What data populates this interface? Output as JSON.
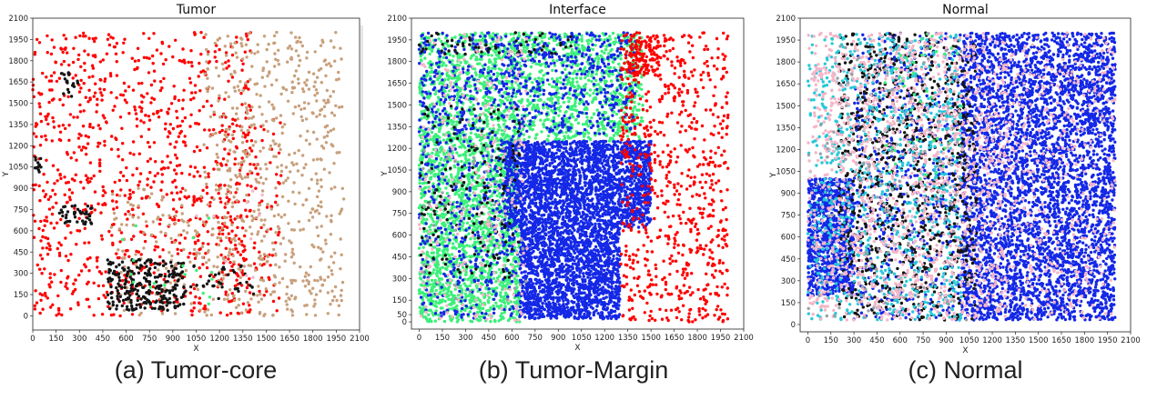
{
  "figure": {
    "captions": [
      "(a) Tumor-core",
      "(b) Tumor-Margin",
      "(c) Normal"
    ]
  },
  "palette": {
    "tumor_red": "#ee1c1c",
    "tan": "#c8a07c",
    "black": "#141414",
    "green": "#3cf07a",
    "blue": "#1428e6",
    "pink": "#f4b6c8",
    "cyan": "#28c8d8",
    "gray": "#9aa0a8"
  },
  "chart_data": [
    {
      "type": "scatter",
      "title": "Tumor",
      "xlabel": "X",
      "ylabel": "Y",
      "xlim": [
        0,
        2100
      ],
      "ylim": [
        -100,
        2100
      ],
      "xticks": [
        0,
        150,
        300,
        450,
        600,
        750,
        900,
        1050,
        1200,
        1350,
        1500,
        1650,
        1800,
        1950,
        2100
      ],
      "yticks": [
        0,
        150,
        300,
        450,
        600,
        750,
        900,
        1050,
        1200,
        1350,
        1500,
        1650,
        1800,
        1950,
        2100
      ],
      "grid": false,
      "regions": [
        {
          "color": "red",
          "x": [
            0,
            1400
          ],
          "y": [
            0,
            2000
          ],
          "density": 1000
        },
        {
          "color": "red",
          "x": [
            1200,
            1600
          ],
          "y": [
            0,
            1400
          ],
          "density": 120
        },
        {
          "color": "tan",
          "x": [
            1100,
            2000
          ],
          "y": [
            0,
            2000
          ],
          "density": 650
        },
        {
          "color": "tan",
          "x": [
            500,
            1100
          ],
          "y": [
            0,
            900
          ],
          "density": 120
        },
        {
          "color": "black",
          "x": [
            480,
            980
          ],
          "y": [
            40,
            400
          ],
          "density": 260
        },
        {
          "color": "black",
          "x": [
            170,
            380
          ],
          "y": [
            640,
            780
          ],
          "density": 40
        },
        {
          "color": "black",
          "x": [
            180,
            300
          ],
          "y": [
            1540,
            1720
          ],
          "density": 18
        },
        {
          "color": "black",
          "x": [
            10,
            60
          ],
          "y": [
            1000,
            1120
          ],
          "density": 12
        },
        {
          "color": "black",
          "x": [
            900,
            1450
          ],
          "y": [
            120,
            380
          ],
          "density": 40
        },
        {
          "color": "green",
          "x": [
            550,
            1200
          ],
          "y": [
            40,
            700
          ],
          "density": 18
        },
        {
          "color": "pink",
          "x": [
            1000,
            1500
          ],
          "y": [
            200,
            900
          ],
          "density": 10
        }
      ]
    },
    {
      "type": "scatter",
      "title": "Interface",
      "xlabel": "X",
      "ylabel": "Y",
      "xlim": [
        -50,
        2100
      ],
      "ylim": [
        -50,
        2100
      ],
      "xticks": [
        0,
        150,
        300,
        450,
        600,
        750,
        900,
        1050,
        1200,
        1350,
        1500,
        1650,
        1800,
        1950,
        2100
      ],
      "yticks": [
        0,
        50,
        150,
        300,
        450,
        600,
        750,
        900,
        1050,
        1200,
        1350,
        1500,
        1650,
        1800,
        1950,
        2100
      ],
      "grid": false,
      "regions": [
        {
          "color": "green",
          "x": [
            0,
            1450
          ],
          "y": [
            1250,
            2000
          ],
          "density": 1700
        },
        {
          "color": "green",
          "x": [
            0,
            650
          ],
          "y": [
            0,
            1300
          ],
          "density": 1800
        },
        {
          "color": "blue",
          "x": [
            0,
            1400
          ],
          "y": [
            1300,
            2000
          ],
          "density": 700
        },
        {
          "color": "blue",
          "x": [
            550,
            1500
          ],
          "y": [
            650,
            1250
          ],
          "density": 2400
        },
        {
          "color": "blue",
          "x": [
            650,
            1300
          ],
          "y": [
            20,
            650
          ],
          "density": 1700
        },
        {
          "color": "blue",
          "x": [
            0,
            650
          ],
          "y": [
            20,
            1300
          ],
          "density": 400
        },
        {
          "color": "red",
          "x": [
            1300,
            2000
          ],
          "y": [
            0,
            2000
          ],
          "density": 750
        },
        {
          "color": "red",
          "x": [
            1350,
            1550
          ],
          "y": [
            1700,
            2000
          ],
          "density": 120
        },
        {
          "color": "black",
          "x": [
            0,
            650
          ],
          "y": [
            300,
            1500
          ],
          "density": 160
        },
        {
          "color": "black",
          "x": [
            0,
            1000
          ],
          "y": [
            1850,
            2000
          ],
          "density": 60
        },
        {
          "color": "pink",
          "x": [
            0,
            700
          ],
          "y": [
            0,
            2000
          ],
          "density": 260
        },
        {
          "color": "gray",
          "x": [
            0,
            700
          ],
          "y": [
            100,
            1200
          ],
          "density": 40
        }
      ]
    },
    {
      "type": "scatter",
      "title": "Normal",
      "xlabel": "X",
      "ylabel": "Y",
      "xlim": [
        -50,
        2100
      ],
      "ylim": [
        -50,
        2100
      ],
      "xticks": [
        0,
        150,
        300,
        450,
        600,
        750,
        900,
        1050,
        1200,
        1350,
        1500,
        1650,
        1800,
        1950,
        2100
      ],
      "yticks": [
        0,
        150,
        300,
        450,
        600,
        750,
        900,
        1050,
        1200,
        1350,
        1500,
        1650,
        1800,
        1950,
        2100
      ],
      "grid": false,
      "regions": [
        {
          "color": "blue",
          "x": [
            1000,
            2000
          ],
          "y": [
            30,
            2000
          ],
          "density": 4500
        },
        {
          "color": "blue",
          "x": [
            0,
            300
          ],
          "y": [
            200,
            1000
          ],
          "density": 900
        },
        {
          "color": "blue",
          "x": [
            300,
            1000
          ],
          "y": [
            30,
            2000
          ],
          "density": 600
        },
        {
          "color": "black",
          "x": [
            200,
            1100
          ],
          "y": [
            30,
            2000
          ],
          "density": 1000
        },
        {
          "color": "cyan",
          "x": [
            0,
            1000
          ],
          "y": [
            30,
            2000
          ],
          "density": 900
        },
        {
          "color": "pink",
          "x": [
            0,
            1300
          ],
          "y": [
            30,
            2000
          ],
          "density": 1400
        },
        {
          "color": "pink",
          "x": [
            1300,
            2000
          ],
          "y": [
            30,
            2000
          ],
          "density": 350
        },
        {
          "color": "green",
          "x": [
            500,
            1000
          ],
          "y": [
            1000,
            2000
          ],
          "density": 40
        },
        {
          "color": "gray",
          "x": [
            0,
            1100
          ],
          "y": [
            30,
            2000
          ],
          "density": 120
        }
      ]
    }
  ]
}
